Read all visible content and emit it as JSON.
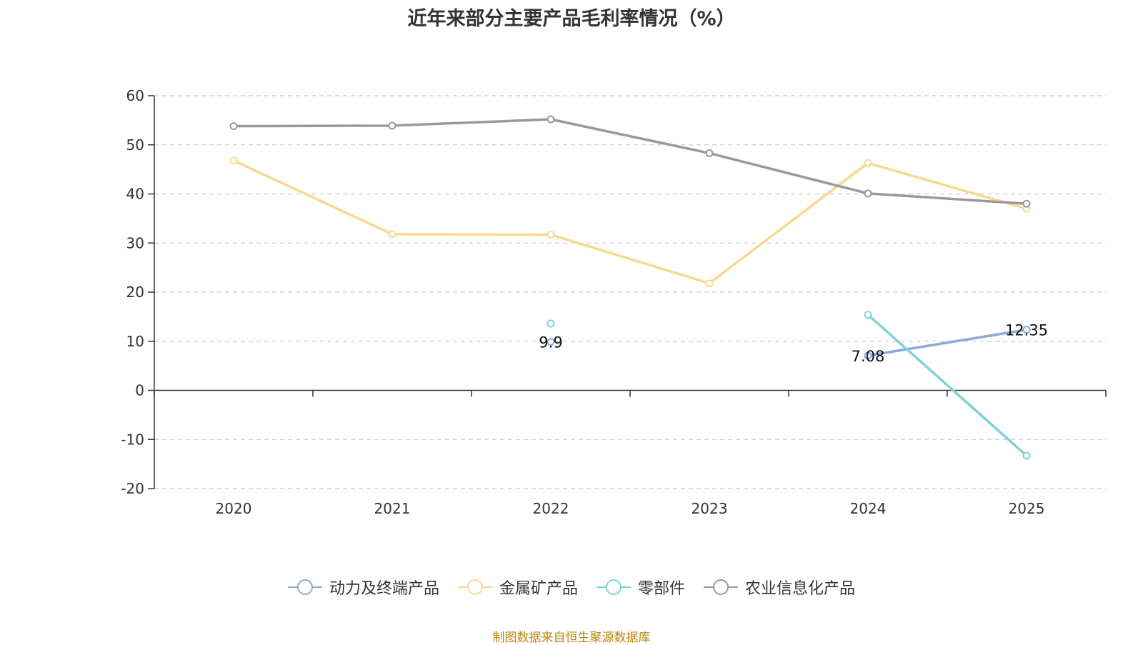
{
  "chart_data": {
    "type": "line",
    "title": "近年来部分主要产品毛利率情况（%）",
    "categories": [
      "2020",
      "2021",
      "2022",
      "2023",
      "2024",
      "2025"
    ],
    "ylim": [
      -20,
      60
    ],
    "yticks": [
      60,
      50,
      40,
      30,
      20,
      10,
      0,
      -10,
      -20
    ],
    "grid": true,
    "legend_position": "bottom",
    "series": [
      {
        "name": "动力及终端产品",
        "color": "#8fa8d8",
        "values": [
          null,
          null,
          9.9,
          null,
          7.08,
          12.35
        ],
        "labels": [
          null,
          null,
          "9.9",
          null,
          "7.08",
          "12.35"
        ]
      },
      {
        "name": "金属矿产品",
        "color": "#f9d88f",
        "values": [
          46.8,
          31.8,
          31.7,
          21.8,
          46.3,
          37.0
        ],
        "labels": [
          null,
          null,
          null,
          null,
          null,
          null
        ]
      },
      {
        "name": "零部件",
        "color": "#7fd3d8",
        "values": [
          null,
          null,
          13.6,
          null,
          15.4,
          -13.3
        ],
        "labels": [
          null,
          null,
          null,
          null,
          null,
          null
        ]
      },
      {
        "name": "农业信息化产品",
        "color": "#999999",
        "values": [
          53.8,
          53.9,
          55.2,
          48.3,
          40.1,
          38.0
        ],
        "labels": [
          null,
          null,
          null,
          null,
          null,
          null
        ]
      }
    ]
  },
  "source_note": "制图数据来自恒生聚源数据库"
}
